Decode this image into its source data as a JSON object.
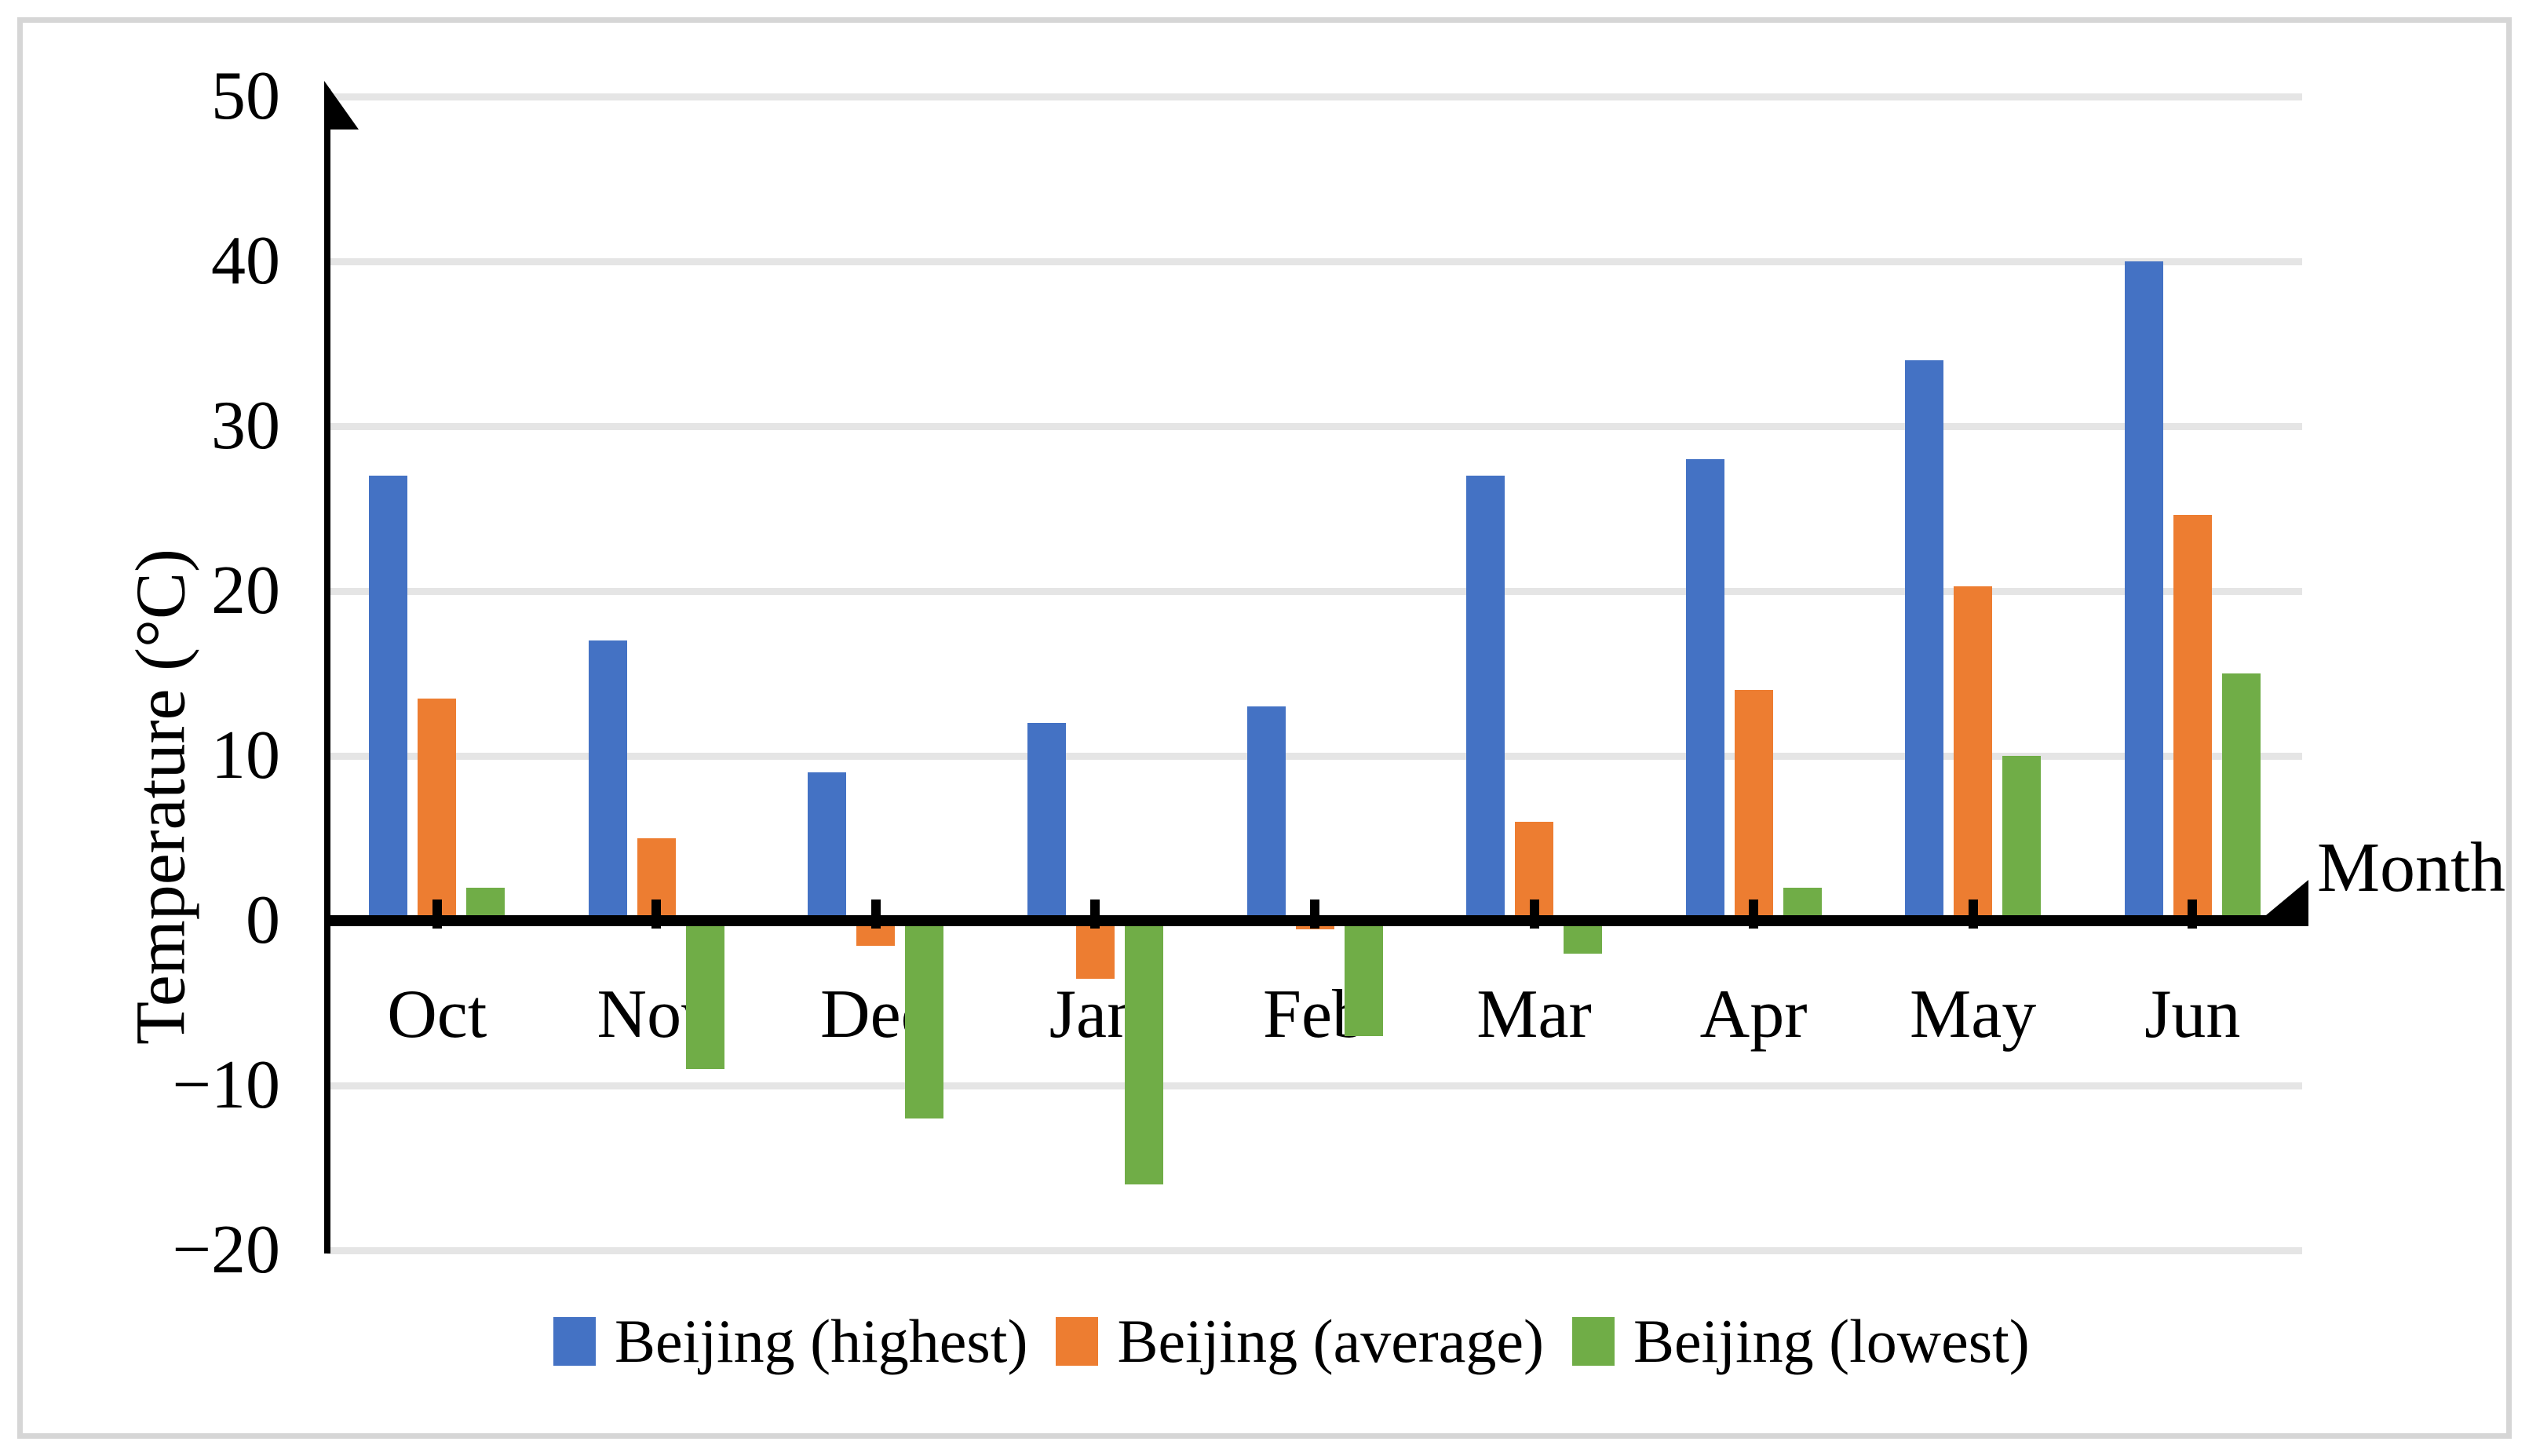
{
  "figure": {
    "background": "#FFFFFF",
    "frame_color": "#D6D6D6",
    "gridline_color": "#E5E5E5",
    "axis_color": "#000000"
  },
  "chart_data": {
    "type": "bar",
    "title": "",
    "xlabel": "Month",
    "ylabel": "Temperature (°C)",
    "categories": [
      "Oct",
      "Nov",
      "Dec",
      "Jan",
      "Feb",
      "Mar",
      "Apr",
      "May",
      "Jun"
    ],
    "series": [
      {
        "name": "Beijing (highest)",
        "color": "#4472C4",
        "values": [
          27,
          17,
          9,
          12,
          13,
          27,
          28,
          34,
          40
        ]
      },
      {
        "name": "Beijing (average)",
        "color": "#ED7D31",
        "values": [
          13.5,
          5,
          -1.5,
          -3.5,
          -0.5,
          6,
          14,
          20.3,
          24.6
        ]
      },
      {
        "name": "Beijing (lowest)",
        "color": "#70AD47",
        "values": [
          2,
          -9,
          -12,
          -16,
          -7,
          -2,
          2,
          10,
          15
        ]
      }
    ],
    "ylim": [
      -20,
      50
    ],
    "ytick_interval": 10,
    "yticks": [
      50,
      40,
      30,
      20,
      10,
      0,
      -10,
      -20
    ],
    "grid": "horizontal",
    "legend_position": "bottom",
    "axis_arrows": [
      "y-top",
      "x-right"
    ]
  }
}
